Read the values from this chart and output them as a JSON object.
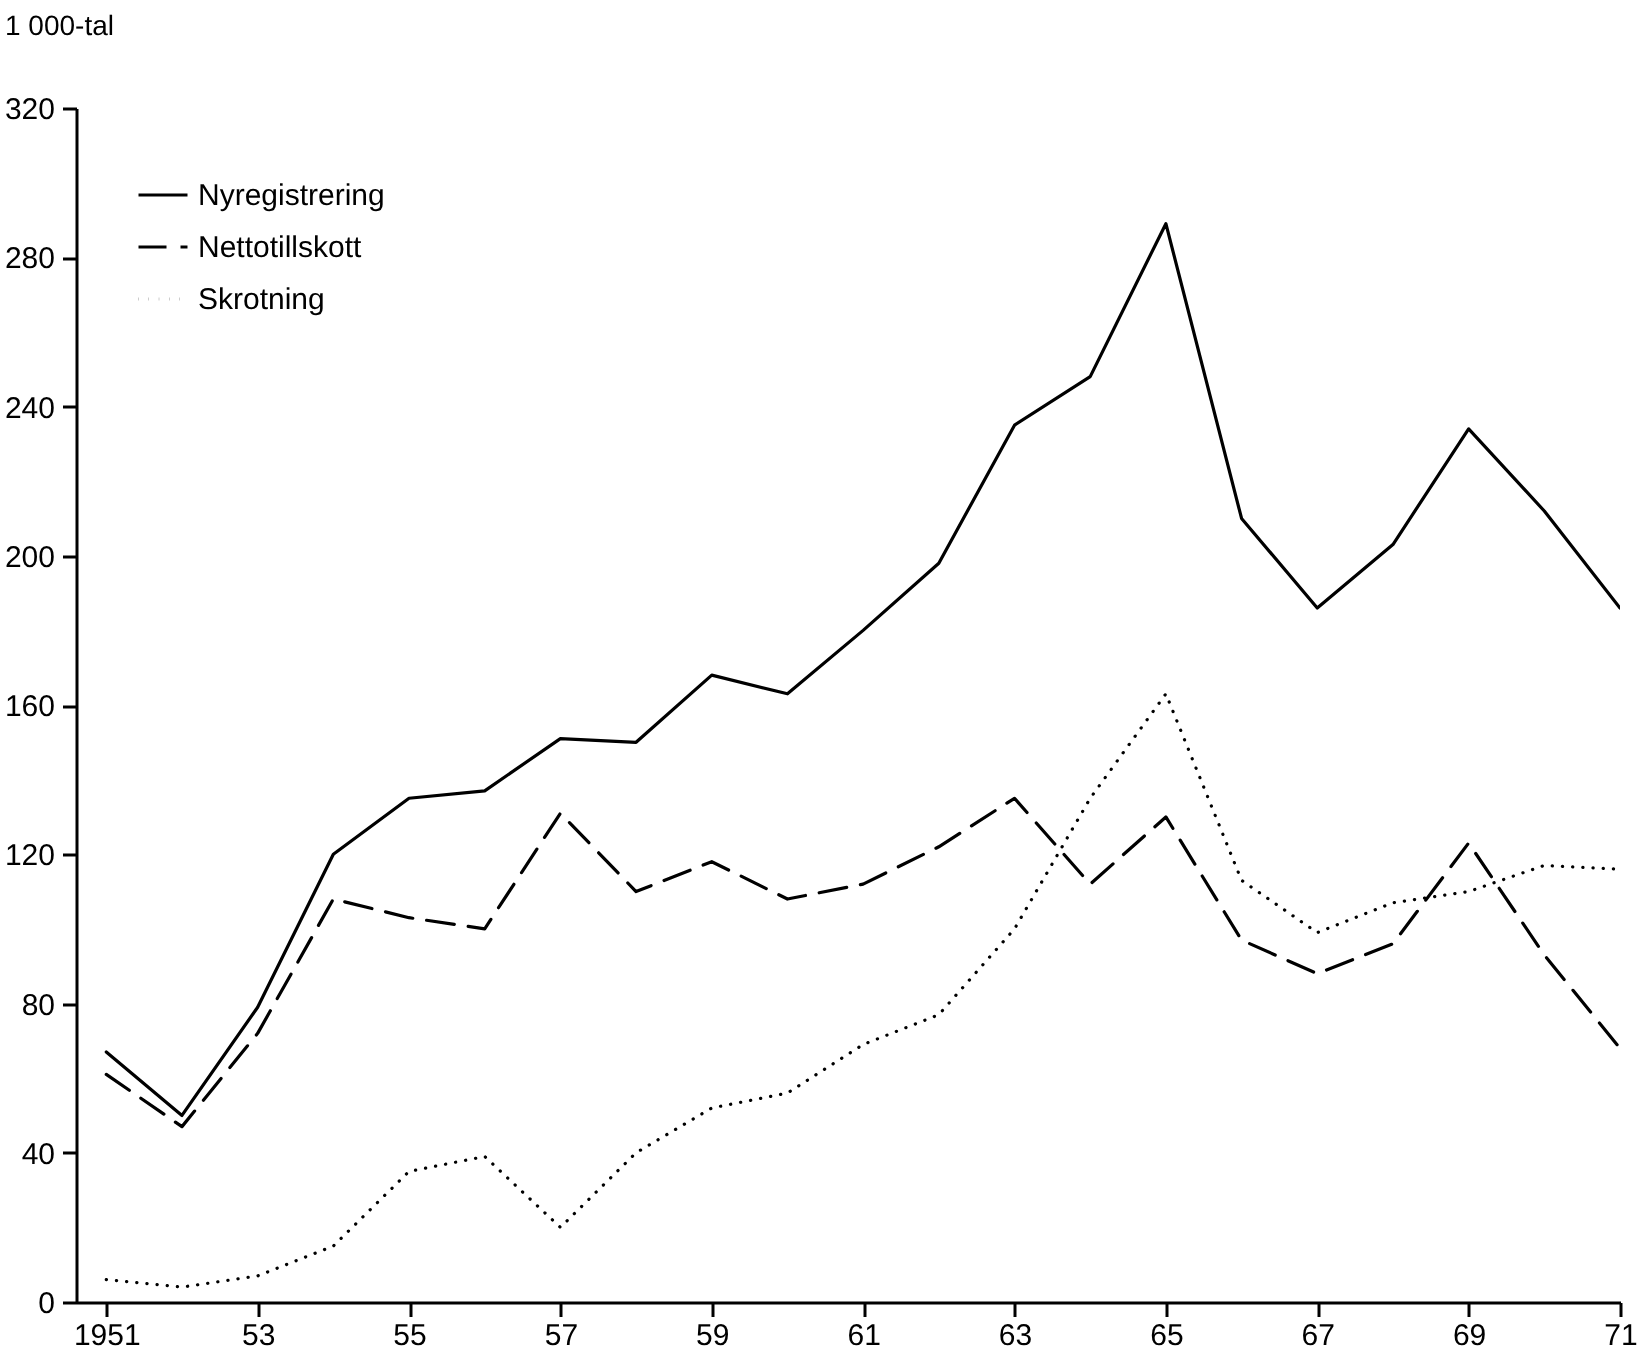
{
  "chart_data": {
    "type": "line",
    "ylabel": "1 000-tal",
    "x": [
      1951,
      1952,
      1953,
      1954,
      1955,
      1956,
      1957,
      1958,
      1959,
      1960,
      1961,
      1962,
      1963,
      1964,
      1965,
      1966,
      1967,
      1968,
      1969,
      1970,
      1971
    ],
    "series": [
      {
        "name": "Nyregistrering",
        "color": "#000000",
        "line_style": "solid",
        "values": [
          67,
          50,
          79,
          120,
          135,
          137,
          151,
          150,
          168,
          163,
          180,
          198,
          235,
          248,
          289,
          210,
          186,
          203,
          234,
          212,
          186
        ]
      },
      {
        "name": "Nettotillskott",
        "color": "#000000",
        "line_style": "dashed",
        "values": [
          61,
          47,
          72,
          108,
          103,
          100,
          131,
          110,
          118,
          108,
          112,
          122,
          135,
          112,
          130,
          97,
          88,
          96,
          123,
          93,
          68
        ]
      },
      {
        "name": "Skrotning",
        "color": "#000000",
        "line_style": "dotted",
        "values": [
          6,
          4,
          7,
          15,
          35,
          39,
          20,
          40,
          52,
          56,
          69,
          77,
          100,
          135,
          163,
          113,
          99,
          107,
          110,
          117,
          116
        ]
      }
    ],
    "xlim": [
      1950.6,
      1971
    ],
    "xticks": [
      {
        "value": 1951,
        "label": "1951"
      },
      {
        "value": 1953,
        "label": "53"
      },
      {
        "value": 1955,
        "label": "55"
      },
      {
        "value": 1957,
        "label": "57"
      },
      {
        "value": 1959,
        "label": "59"
      },
      {
        "value": 1961,
        "label": "61"
      },
      {
        "value": 1963,
        "label": "63"
      },
      {
        "value": 1965,
        "label": "65"
      },
      {
        "value": 1967,
        "label": "67"
      },
      {
        "value": 1969,
        "label": "69"
      },
      {
        "value": 1971,
        "label": "71"
      }
    ],
    "ylim": [
      0,
      320
    ],
    "yticks": [
      0,
      40,
      80,
      120,
      160,
      200,
      240,
      280,
      320
    ],
    "grid": false,
    "legend": "top left"
  }
}
